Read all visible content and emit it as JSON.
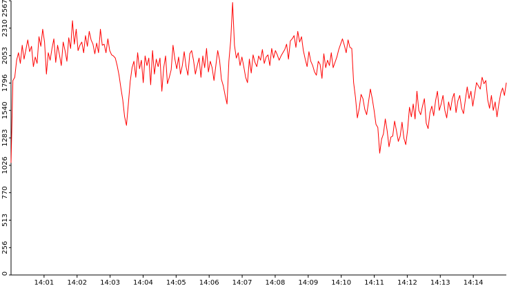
{
  "chart_data": {
    "type": "line",
    "title": "",
    "xlabel": "",
    "ylabel": "",
    "ylim": [
      0,
      2567
    ],
    "xlim": [
      "14:00:00",
      "14:15:00"
    ],
    "y_ticks": [
      0,
      256,
      513,
      770,
      1026,
      1283,
      1540,
      1796,
      2053,
      2310,
      2567
    ],
    "x_ticks": [
      "14:01",
      "14:02",
      "14:03",
      "14:04",
      "14:05",
      "14:06",
      "14:07",
      "14:08",
      "14:09",
      "14:10",
      "14:11",
      "14:12",
      "14:13",
      "14:14"
    ],
    "grid": false,
    "legend": "none",
    "colors": {
      "line": "#ff0000",
      "axis": "#000000",
      "background": "#ffffff"
    },
    "series": [
      {
        "x_start": "14:00:00",
        "x_end": "14:15:00",
        "values": [
          1050,
          1820,
          1850,
          2010,
          2080,
          1980,
          2150,
          2020,
          2110,
          2200,
          2090,
          2140,
          1950,
          2040,
          1980,
          2230,
          2140,
          2300,
          2180,
          1880,
          2080,
          2010,
          2120,
          2210,
          1990,
          2150,
          2060,
          1960,
          2180,
          2100,
          2000,
          2220,
          2120,
          2380,
          2160,
          2300,
          2100,
          2150,
          2180,
          2080,
          2240,
          2140,
          2280,
          2200,
          2160,
          2070,
          2170,
          2080,
          2300,
          2150,
          2160,
          2080,
          2210,
          2100,
          2060,
          2050,
          2030,
          1960,
          1870,
          1750,
          1640,
          1480,
          1400,
          1600,
          1810,
          1940,
          2000,
          1850,
          2080,
          1930,
          2010,
          1800,
          2050,
          1960,
          2030,
          1780,
          2100,
          1880,
          2020,
          1950,
          2030,
          1720,
          1940,
          2050,
          1790,
          1850,
          1920,
          2150,
          2020,
          1930,
          2040,
          1880,
          1960,
          2090,
          1950,
          1870,
          2070,
          2100,
          2010,
          1880,
          1960,
          2030,
          1850,
          2050,
          1940,
          2120,
          1900,
          2000,
          1940,
          1820,
          1960,
          2100,
          2010,
          1830,
          1770,
          1680,
          1600,
          2000,
          2200,
          2550,
          2150,
          2030,
          2080,
          1960,
          2040,
          1950,
          1850,
          1800,
          2020,
          1890,
          2060,
          1990,
          1950,
          2050,
          2010,
          2110,
          1980,
          2040,
          2060,
          1960,
          2120,
          2030,
          2100,
          2060,
          2010,
          2050,
          2080,
          2110,
          2160,
          2020,
          2190,
          2210,
          2240,
          2130,
          2280,
          2180,
          2230,
          2100,
          2020,
          1950,
          2090,
          2000,
          1960,
          1900,
          1870,
          2000,
          1970,
          1840,
          2070,
          1940,
          2010,
          1960,
          2080,
          1940,
          1990,
          2040,
          2110,
          2160,
          2210,
          2150,
          2080,
          2200,
          2130,
          2120,
          1800,
          1660,
          1470,
          1560,
          1690,
          1650,
          1550,
          1500,
          1620,
          1740,
          1650,
          1540,
          1410,
          1380,
          1140,
          1270,
          1320,
          1460,
          1350,
          1200,
          1290,
          1300,
          1440,
          1350,
          1250,
          1300,
          1430,
          1280,
          1220,
          1360,
          1570,
          1480,
          1600,
          1460,
          1720,
          1540,
          1500,
          1580,
          1650,
          1420,
          1370,
          1520,
          1580,
          1490,
          1630,
          1720,
          1540,
          1600,
          1680,
          1540,
          1470,
          1620,
          1540,
          1650,
          1700,
          1520,
          1630,
          1680,
          1560,
          1510,
          1640,
          1760,
          1650,
          1720,
          1580,
          1690,
          1800,
          1770,
          1740,
          1850,
          1790,
          1820,
          1640,
          1560,
          1680,
          1540,
          1620,
          1480,
          1600,
          1700,
          1750,
          1680,
          1800
        ]
      }
    ]
  }
}
